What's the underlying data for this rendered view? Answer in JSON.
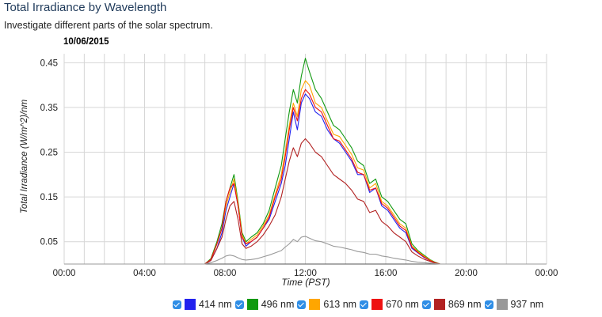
{
  "header": {
    "title": "Total Irradiance by Wavelength",
    "subtitle": "Investigate different parts of the solar spectrum."
  },
  "chart_data": {
    "type": "line",
    "title": "10/06/2015",
    "xlabel": "Time (PST)",
    "ylabel": "Total Irradiance (W/m^2)/nm",
    "x_ticks": [
      "00:00",
      "04:00",
      "08:00",
      "12:00",
      "16:00",
      "20:00",
      "00:00"
    ],
    "y_ticks": [
      "0.45",
      "0.35",
      "0.25",
      "0.15",
      "0.05"
    ],
    "xlim": [
      0,
      24
    ],
    "ylim": [
      0,
      0.47
    ],
    "grid": true,
    "legend_position": "bottom",
    "x": [
      0,
      7.0,
      7.3,
      7.6,
      7.85,
      8.05,
      8.25,
      8.45,
      8.65,
      8.85,
      9.05,
      9.3,
      9.6,
      9.9,
      10.2,
      10.5,
      10.8,
      11.0,
      11.2,
      11.4,
      11.6,
      11.8,
      12.0,
      12.2,
      12.5,
      12.8,
      13.1,
      13.4,
      13.7,
      14.0,
      14.3,
      14.6,
      14.9,
      15.2,
      15.5,
      15.8,
      16.1,
      16.4,
      16.7,
      17.0,
      17.3,
      17.6,
      17.9,
      18.2,
      18.45,
      18.7,
      24
    ],
    "series": [
      {
        "name": "414 nm",
        "color": "#2222ee",
        "values": [
          0,
          0,
          0.008,
          0.035,
          0.07,
          0.12,
          0.15,
          0.18,
          0.13,
          0.06,
          0.04,
          0.05,
          0.06,
          0.08,
          0.1,
          0.14,
          0.18,
          0.22,
          0.28,
          0.34,
          0.3,
          0.36,
          0.38,
          0.37,
          0.34,
          0.33,
          0.3,
          0.28,
          0.27,
          0.25,
          0.23,
          0.2,
          0.2,
          0.16,
          0.17,
          0.13,
          0.12,
          0.1,
          0.08,
          0.07,
          0.035,
          0.025,
          0.015,
          0.008,
          0.003,
          0,
          0
        ]
      },
      {
        "name": "496 nm",
        "color": "#119911",
        "values": [
          0,
          0,
          0.012,
          0.05,
          0.09,
          0.14,
          0.17,
          0.2,
          0.14,
          0.07,
          0.05,
          0.06,
          0.07,
          0.09,
          0.12,
          0.17,
          0.22,
          0.28,
          0.34,
          0.39,
          0.36,
          0.42,
          0.46,
          0.43,
          0.39,
          0.37,
          0.34,
          0.31,
          0.3,
          0.28,
          0.26,
          0.23,
          0.22,
          0.18,
          0.19,
          0.15,
          0.14,
          0.12,
          0.1,
          0.09,
          0.045,
          0.03,
          0.02,
          0.01,
          0.004,
          0,
          0
        ]
      },
      {
        "name": "613 nm",
        "color": "#ffa600",
        "values": [
          0,
          0,
          0.01,
          0.045,
          0.08,
          0.13,
          0.16,
          0.19,
          0.135,
          0.065,
          0.045,
          0.055,
          0.065,
          0.085,
          0.11,
          0.155,
          0.2,
          0.25,
          0.31,
          0.36,
          0.33,
          0.39,
          0.41,
          0.4,
          0.36,
          0.35,
          0.32,
          0.29,
          0.285,
          0.265,
          0.245,
          0.215,
          0.21,
          0.17,
          0.18,
          0.14,
          0.13,
          0.11,
          0.09,
          0.08,
          0.04,
          0.028,
          0.018,
          0.009,
          0.003,
          0,
          0
        ]
      },
      {
        "name": "670 nm",
        "color": "#ee1111",
        "values": [
          0,
          0,
          0.01,
          0.045,
          0.08,
          0.14,
          0.17,
          0.18,
          0.13,
          0.06,
          0.045,
          0.05,
          0.06,
          0.08,
          0.105,
          0.15,
          0.19,
          0.24,
          0.3,
          0.35,
          0.32,
          0.37,
          0.39,
          0.38,
          0.35,
          0.34,
          0.31,
          0.28,
          0.275,
          0.255,
          0.235,
          0.205,
          0.2,
          0.165,
          0.17,
          0.135,
          0.125,
          0.105,
          0.085,
          0.075,
          0.038,
          0.026,
          0.016,
          0.008,
          0.003,
          0,
          0
        ]
      },
      {
        "name": "869 nm",
        "color": "#b22222",
        "values": [
          0,
          0,
          0.008,
          0.035,
          0.06,
          0.1,
          0.13,
          0.14,
          0.1,
          0.045,
          0.035,
          0.04,
          0.05,
          0.065,
          0.085,
          0.11,
          0.15,
          0.19,
          0.23,
          0.26,
          0.24,
          0.27,
          0.28,
          0.27,
          0.25,
          0.24,
          0.22,
          0.2,
          0.19,
          0.18,
          0.165,
          0.145,
          0.14,
          0.115,
          0.12,
          0.095,
          0.085,
          0.07,
          0.06,
          0.05,
          0.027,
          0.018,
          0.011,
          0.006,
          0.002,
          0,
          0
        ]
      },
      {
        "name": "937 nm",
        "color": "#999999",
        "values": [
          0,
          0,
          0.003,
          0.008,
          0.013,
          0.018,
          0.02,
          0.018,
          0.014,
          0.01,
          0.009,
          0.01,
          0.012,
          0.016,
          0.02,
          0.025,
          0.03,
          0.038,
          0.045,
          0.055,
          0.05,
          0.06,
          0.062,
          0.058,
          0.052,
          0.05,
          0.045,
          0.04,
          0.038,
          0.035,
          0.032,
          0.028,
          0.026,
          0.022,
          0.022,
          0.018,
          0.016,
          0.013,
          0.011,
          0.009,
          0.006,
          0.004,
          0.003,
          0.002,
          0.001,
          0,
          0
        ]
      }
    ]
  }
}
